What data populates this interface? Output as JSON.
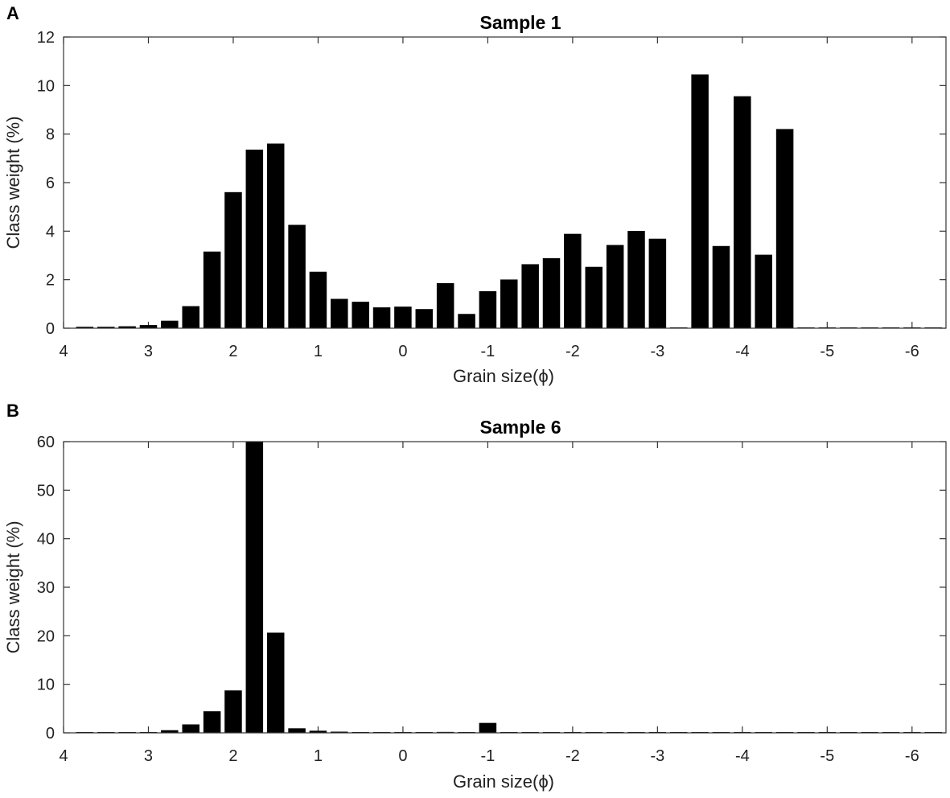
{
  "chart_data": [
    {
      "panel_label": "A",
      "type": "bar",
      "title": "Sample 1",
      "xlabel": "Grain size(ϕ)",
      "ylabel": "Class weight (%)",
      "xlim": [
        4,
        -6.4
      ],
      "ylim": [
        0,
        12
      ],
      "xticks": [
        4,
        3,
        2,
        1,
        0,
        -1,
        -2,
        -3,
        -4,
        -5,
        -6
      ],
      "xtick_labels": [
        "4",
        "3",
        "2",
        "1",
        "0",
        "-1",
        "-2",
        "-3",
        "-4",
        "-5",
        "-6"
      ],
      "yticks": [
        0,
        2,
        4,
        6,
        8,
        10,
        12
      ],
      "ytick_labels": [
        "0",
        "2",
        "4",
        "6",
        "8",
        "10",
        "12"
      ],
      "bar_color": "#000000",
      "grid": false,
      "x": [
        3.75,
        3.5,
        3.25,
        3.0,
        2.75,
        2.5,
        2.25,
        2.0,
        1.75,
        1.5,
        1.25,
        1.0,
        0.75,
        0.5,
        0.25,
        0.0,
        -0.25,
        -0.5,
        -0.75,
        -1.0,
        -1.25,
        -1.5,
        -1.75,
        -2.0,
        -2.25,
        -2.5,
        -2.75,
        -3.0,
        -3.25,
        -3.5,
        -3.75,
        -4.0,
        -4.25,
        -4.5,
        -4.75,
        -5.0,
        -5.25,
        -5.5,
        -5.75,
        -6.0,
        -6.25
      ],
      "values": [
        0.05,
        0.05,
        0.07,
        0.12,
        0.3,
        0.9,
        3.15,
        5.6,
        7.35,
        7.6,
        4.25,
        2.32,
        1.2,
        1.08,
        0.85,
        0.88,
        0.78,
        1.85,
        0.58,
        1.52,
        2.0,
        2.63,
        2.88,
        3.88,
        2.52,
        3.42,
        4.0,
        3.68,
        0.0,
        10.45,
        3.38,
        9.55,
        3.02,
        8.2,
        0.02,
        0.02,
        0.02,
        0.02,
        0.02,
        0.02,
        0.02
      ]
    },
    {
      "panel_label": "B",
      "type": "bar",
      "title": "Sample 6",
      "xlabel": "Grain size(ϕ)",
      "ylabel": "Class weight (%)",
      "xlim": [
        4,
        -6.4
      ],
      "ylim": [
        0,
        60
      ],
      "xticks": [
        4,
        3,
        2,
        1,
        0,
        -1,
        -2,
        -3,
        -4,
        -5,
        -6
      ],
      "xtick_labels": [
        "4",
        "3",
        "2",
        "1",
        "0",
        "-1",
        "-2",
        "-3",
        "-4",
        "-5",
        "-6"
      ],
      "yticks": [
        0,
        10,
        20,
        30,
        40,
        50,
        60
      ],
      "ytick_labels": [
        "0",
        "10",
        "20",
        "30",
        "40",
        "50",
        "60"
      ],
      "bar_color": "#000000",
      "grid": false,
      "x": [
        3.75,
        3.5,
        3.25,
        3.0,
        2.75,
        2.5,
        2.25,
        2.0,
        1.75,
        1.5,
        1.25,
        1.0,
        0.75,
        0.5,
        0.25,
        0.0,
        -0.25,
        -0.5,
        -0.75,
        -1.0,
        -1.25,
        -1.5,
        -1.75,
        -2.0,
        -2.25,
        -2.5,
        -2.75,
        -3.0,
        -3.25,
        -3.5,
        -3.75,
        -4.0,
        -4.25,
        -4.5,
        -4.75,
        -5.0,
        -5.25,
        -5.5,
        -5.75,
        -6.0,
        -6.25
      ],
      "values": [
        0.05,
        0.05,
        0.05,
        0.1,
        0.5,
        1.7,
        4.4,
        8.7,
        60,
        20.6,
        0.9,
        0.4,
        0.2,
        0.1,
        0.1,
        0.1,
        0.1,
        0.15,
        0.1,
        2.0,
        0.05,
        0.05,
        0.05,
        0.05,
        0.05,
        0.05,
        0.05,
        0.05,
        0.05,
        0.05,
        0.05,
        0.05,
        0.05,
        0.05,
        0.05,
        0.05,
        0.05,
        0.05,
        0.05,
        0.05,
        0.05
      ]
    }
  ]
}
